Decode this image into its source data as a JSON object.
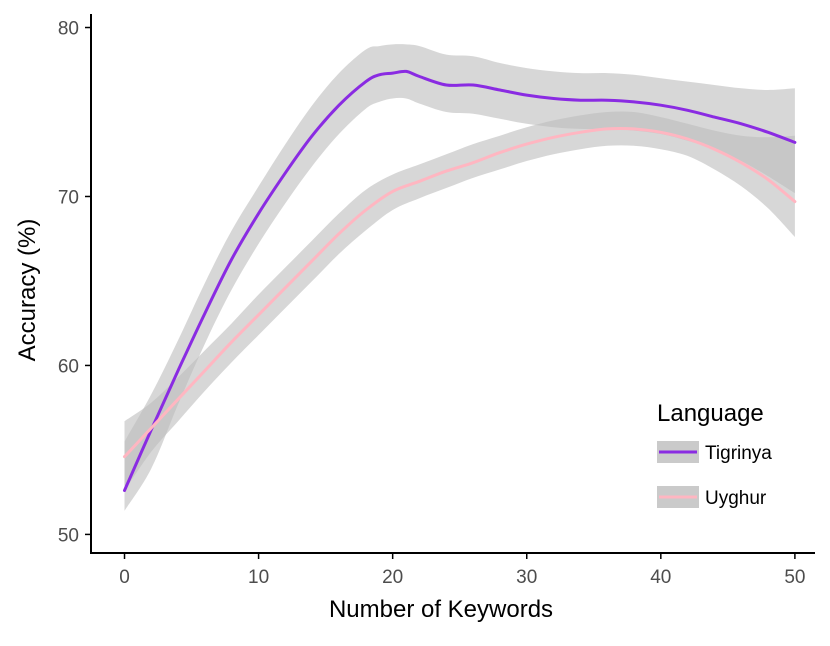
{
  "chart_data": {
    "type": "line",
    "xlabel": "Number of Keywords",
    "ylabel": "Accuracy (%)",
    "xlim": [
      -2.5,
      51.5
    ],
    "ylim": [
      48.9,
      80.8
    ],
    "xticks": [
      0,
      10,
      20,
      30,
      40,
      50
    ],
    "yticks": [
      50,
      60,
      70,
      80
    ],
    "grid": false,
    "confidence_band_color": "#bdbdbd",
    "legend": {
      "title": "Language",
      "placement": "bottom-right"
    },
    "series": [
      {
        "name": "Tigrinya",
        "color": "#8a2be2",
        "x": [
          0,
          2,
          4,
          6,
          8,
          10,
          12,
          14,
          16,
          18,
          19,
          20,
          21,
          22,
          24,
          26,
          28,
          30,
          32,
          34,
          36,
          38,
          40,
          42,
          44,
          46,
          48,
          50
        ],
        "y": [
          52.6,
          56.2,
          59.7,
          63.1,
          66.3,
          69.0,
          71.4,
          73.6,
          75.4,
          76.8,
          77.2,
          77.3,
          77.4,
          77.1,
          76.6,
          76.6,
          76.3,
          76.0,
          75.8,
          75.7,
          75.7,
          75.6,
          75.4,
          75.1,
          74.7,
          74.3,
          73.8,
          73.2
        ],
        "ci_upper": [
          55.5,
          58.3,
          61.5,
          64.9,
          68.0,
          70.6,
          73.1,
          75.4,
          77.3,
          78.7,
          78.9,
          79.0,
          79.0,
          78.9,
          78.4,
          78.3,
          77.9,
          77.6,
          77.4,
          77.3,
          77.3,
          77.2,
          77.0,
          76.8,
          76.6,
          76.4,
          76.3,
          76.4
        ],
        "ci_lower": [
          51.4,
          53.9,
          57.7,
          61.3,
          64.5,
          67.2,
          69.6,
          71.8,
          73.7,
          75.2,
          75.6,
          75.8,
          75.8,
          75.5,
          75.0,
          74.9,
          74.6,
          74.3,
          74.1,
          74.0,
          74.0,
          73.9,
          73.7,
          73.3,
          72.8,
          72.1,
          71.2,
          70.2
        ]
      },
      {
        "name": "Uyghur",
        "color": "#ffb6c1",
        "x": [
          0,
          2,
          4,
          6,
          8,
          10,
          12,
          14,
          16,
          18,
          20,
          22,
          24,
          26,
          28,
          30,
          32,
          34,
          36,
          38,
          40,
          42,
          44,
          46,
          48,
          50
        ],
        "y": [
          54.6,
          56.3,
          58.0,
          59.7,
          61.4,
          63.0,
          64.6,
          66.2,
          67.8,
          69.2,
          70.3,
          70.9,
          71.5,
          72.0,
          72.6,
          73.1,
          73.5,
          73.8,
          74.0,
          74.0,
          73.8,
          73.4,
          72.8,
          72.0,
          71.0,
          69.7
        ],
        "ci_upper": [
          56.7,
          57.8,
          59.3,
          60.9,
          62.5,
          64.2,
          65.8,
          67.4,
          69.0,
          70.4,
          71.3,
          71.9,
          72.5,
          73.1,
          73.6,
          74.1,
          74.5,
          74.8,
          75.0,
          75.0,
          74.7,
          74.3,
          73.9,
          73.6,
          73.5,
          73.6
        ],
        "ci_lower": [
          52.6,
          54.9,
          56.7,
          58.5,
          60.2,
          61.8,
          63.4,
          65.0,
          66.6,
          68.0,
          69.2,
          69.9,
          70.5,
          71.1,
          71.6,
          72.1,
          72.5,
          72.8,
          73.0,
          73.0,
          72.8,
          72.4,
          71.6,
          70.6,
          69.3,
          67.6
        ]
      }
    ]
  }
}
